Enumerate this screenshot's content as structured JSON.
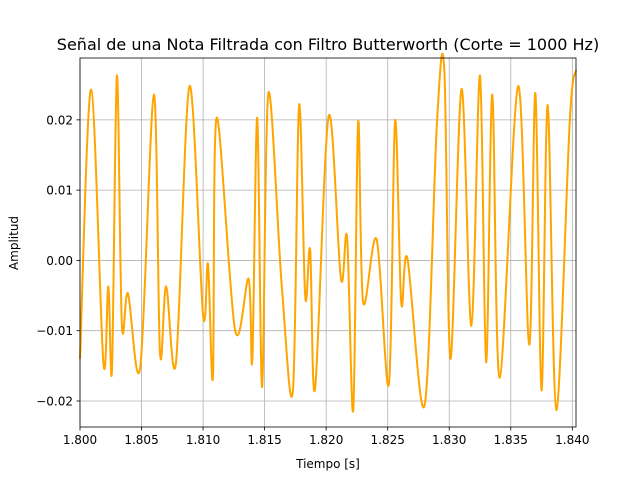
{
  "chart_data": {
    "type": "line",
    "title": "Señal de una Nota Filtrada con Filtro Butterworth (Corte = 1000 Hz)",
    "xlabel": "Tiempo [s]",
    "ylabel": "Amplitud",
    "xlim": [
      1.8,
      1.8403
    ],
    "ylim": [
      -0.0237,
      0.0288
    ],
    "xticks": [
      1.8,
      1.805,
      1.81,
      1.815,
      1.82,
      1.825,
      1.83,
      1.835,
      1.84
    ],
    "xtick_labels": [
      "1.800",
      "1.805",
      "1.810",
      "1.815",
      "1.820",
      "1.825",
      "1.830",
      "1.835",
      "1.840"
    ],
    "yticks": [
      -0.02,
      -0.01,
      0.0,
      0.01,
      0.02
    ],
    "ytick_labels": [
      "−0.02",
      "−0.01",
      "0.00",
      "0.01",
      "0.02"
    ],
    "grid": true,
    "series": [
      {
        "color": "#FFA500",
        "x": [
          1.8,
          1.8009,
          1.8019,
          1.8023,
          1.8026,
          1.803,
          1.8034,
          1.8039,
          1.8049,
          1.806,
          1.8065,
          1.807,
          1.8078,
          1.8089,
          1.81,
          1.8104,
          1.8108,
          1.8111,
          1.8126,
          1.8137,
          1.814,
          1.8144,
          1.8148,
          1.8153,
          1.8164,
          1.8173,
          1.8178,
          1.8183,
          1.8187,
          1.8191,
          1.8202,
          1.8212,
          1.8217,
          1.8222,
          1.8226,
          1.823,
          1.8241,
          1.8251,
          1.8256,
          1.8261,
          1.8266,
          1.828,
          1.829,
          1.8296,
          1.8301,
          1.831,
          1.8318,
          1.8325,
          1.833,
          1.8335,
          1.8341,
          1.8356,
          1.8365,
          1.837,
          1.8375,
          1.838,
          1.8387,
          1.8398,
          1.8403
        ],
        "y": [
          -0.014,
          0.0243,
          -0.0146,
          -0.0037,
          -0.0155,
          0.0263,
          -0.009,
          -0.0047,
          -0.0151,
          0.0236,
          -0.0132,
          -0.0037,
          -0.0145,
          0.0248,
          -0.0078,
          -0.0005,
          -0.0166,
          0.0203,
          -0.0099,
          -0.0026,
          -0.0142,
          0.0203,
          -0.018,
          0.0238,
          -0.0038,
          -0.0185,
          0.0221,
          -0.0052,
          0.0015,
          -0.0183,
          0.0205,
          -0.0026,
          0.0033,
          -0.0213,
          0.0197,
          -0.0059,
          0.003,
          -0.0176,
          0.0199,
          -0.006,
          0.0003,
          -0.0206,
          0.0195,
          0.0271,
          -0.014,
          0.0244,
          -0.0093,
          0.0263,
          -0.0145,
          0.0236,
          -0.0167,
          0.0248,
          -0.012,
          0.0238,
          -0.0185,
          0.0221,
          -0.0213,
          0.02,
          0.0271
        ]
      }
    ]
  }
}
